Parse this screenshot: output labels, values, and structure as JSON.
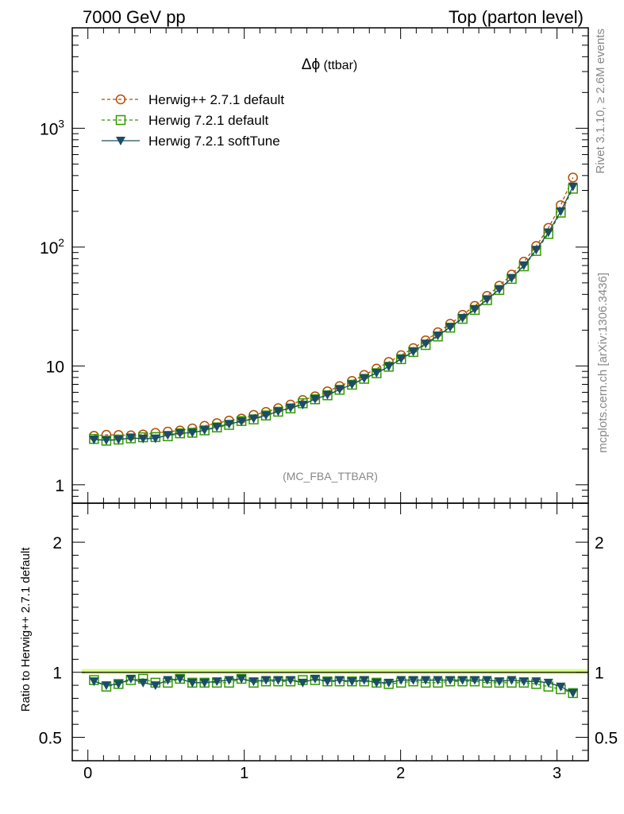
{
  "header": {
    "left": "7000 GeV pp",
    "right": "Top (parton level)"
  },
  "side_labels": {
    "rivet": "Rivet 3.1.10, ≥ 2.6M events",
    "mcplots": "mcplots.cern.ch [arXiv:1306.3436]"
  },
  "chart_data": {
    "type": "line",
    "title": "Δϕ (ttbar)",
    "title_sym": "Δϕ",
    "title_rest": " (ttbar)",
    "watermark": "(MC_FBA_TTBAR)",
    "xlim": [
      -0.1,
      3.2
    ],
    "ylim": [
      0.7,
      7000
    ],
    "y_log": true,
    "x_ticks": [
      "0",
      "1",
      "2",
      "3"
    ],
    "y_ticks": [
      "1",
      "10",
      "10^2",
      "10^3"
    ],
    "ratio_ylabel": "Ratio to Herwig++ 2.7.1 default",
    "ratio_ylim": [
      0.32,
      2.3
    ],
    "ratio_ticks": [
      "0.5",
      "1",
      "2"
    ],
    "legend_position": "top-left",
    "colors": {
      "herwigpp": "#b34d00",
      "herwig721": "#339900",
      "softtune": "#1a4d66",
      "band": "#ccff66"
    },
    "x": [
      0.039,
      0.118,
      0.196,
      0.275,
      0.353,
      0.432,
      0.511,
      0.589,
      0.668,
      0.746,
      0.825,
      0.903,
      0.982,
      1.06,
      1.139,
      1.217,
      1.296,
      1.374,
      1.453,
      1.532,
      1.61,
      1.689,
      1.767,
      1.846,
      1.924,
      2.003,
      2.081,
      2.16,
      2.238,
      2.317,
      2.396,
      2.474,
      2.553,
      2.631,
      2.71,
      2.788,
      2.867,
      2.945,
      3.024,
      3.102
    ],
    "series": [
      {
        "name": "Herwig++ 2.7.1 default",
        "marker": "circle",
        "values": [
          2.58,
          2.63,
          2.62,
          2.6,
          2.65,
          2.73,
          2.8,
          2.86,
          2.98,
          3.13,
          3.3,
          3.47,
          3.6,
          3.87,
          4.1,
          4.41,
          4.73,
          5.16,
          5.55,
          6.11,
          6.76,
          7.48,
          8.39,
          9.49,
          10.8,
          12.3,
          14.1,
          16.4,
          19.2,
          22.6,
          26.9,
          32.0,
          38.8,
          47.3,
          58.6,
          75.3,
          102,
          145,
          225,
          385
        ]
      },
      {
        "name": "Herwig 7.2.1 default",
        "marker": "square",
        "values": [
          2.43,
          2.35,
          2.4,
          2.46,
          2.51,
          2.52,
          2.56,
          2.71,
          2.74,
          2.87,
          3.04,
          3.19,
          3.44,
          3.55,
          3.83,
          4.12,
          4.39,
          4.85,
          5.24,
          5.66,
          6.3,
          6.95,
          7.79,
          8.69,
          9.85,
          11.4,
          13.1,
          15.0,
          17.7,
          21.0,
          24.9,
          29.6,
          35.8,
          43.6,
          54.0,
          68.9,
          92.8,
          129,
          195,
          310
        ]
      },
      {
        "name": "Herwig 7.2.1 softTune",
        "marker": "triangle-down",
        "values": [
          2.4,
          2.37,
          2.4,
          2.48,
          2.44,
          2.45,
          2.62,
          2.72,
          2.74,
          2.88,
          3.07,
          3.25,
          3.42,
          3.6,
          3.85,
          4.15,
          4.44,
          4.72,
          5.26,
          5.71,
          6.34,
          6.99,
          7.86,
          8.73,
          9.88,
          11.5,
          13.2,
          15.4,
          18.0,
          21.2,
          25.3,
          30.0,
          36.3,
          44.2,
          54.9,
          70.2,
          94.9,
          133,
          200,
          323
        ]
      }
    ],
    "ratio_series": [
      {
        "name": "Herwig 7.2.1 default",
        "values": [
          0.94,
          0.89,
          0.91,
          0.94,
          0.95,
          0.92,
          0.92,
          0.95,
          0.92,
          0.92,
          0.92,
          0.92,
          0.95,
          0.92,
          0.93,
          0.93,
          0.93,
          0.94,
          0.94,
          0.93,
          0.93,
          0.93,
          0.93,
          0.92,
          0.91,
          0.92,
          0.93,
          0.92,
          0.92,
          0.93,
          0.93,
          0.93,
          0.92,
          0.92,
          0.92,
          0.92,
          0.91,
          0.89,
          0.87,
          0.84
        ]
      },
      {
        "name": "Herwig 7.2.1 softTune",
        "values": [
          0.93,
          0.9,
          0.91,
          0.95,
          0.92,
          0.9,
          0.94,
          0.95,
          0.92,
          0.92,
          0.93,
          0.94,
          0.95,
          0.93,
          0.94,
          0.94,
          0.94,
          0.92,
          0.95,
          0.93,
          0.94,
          0.93,
          0.94,
          0.92,
          0.92,
          0.94,
          0.94,
          0.94,
          0.94,
          0.94,
          0.94,
          0.94,
          0.94,
          0.93,
          0.94,
          0.93,
          0.93,
          0.92,
          0.89,
          0.84
        ]
      }
    ]
  }
}
